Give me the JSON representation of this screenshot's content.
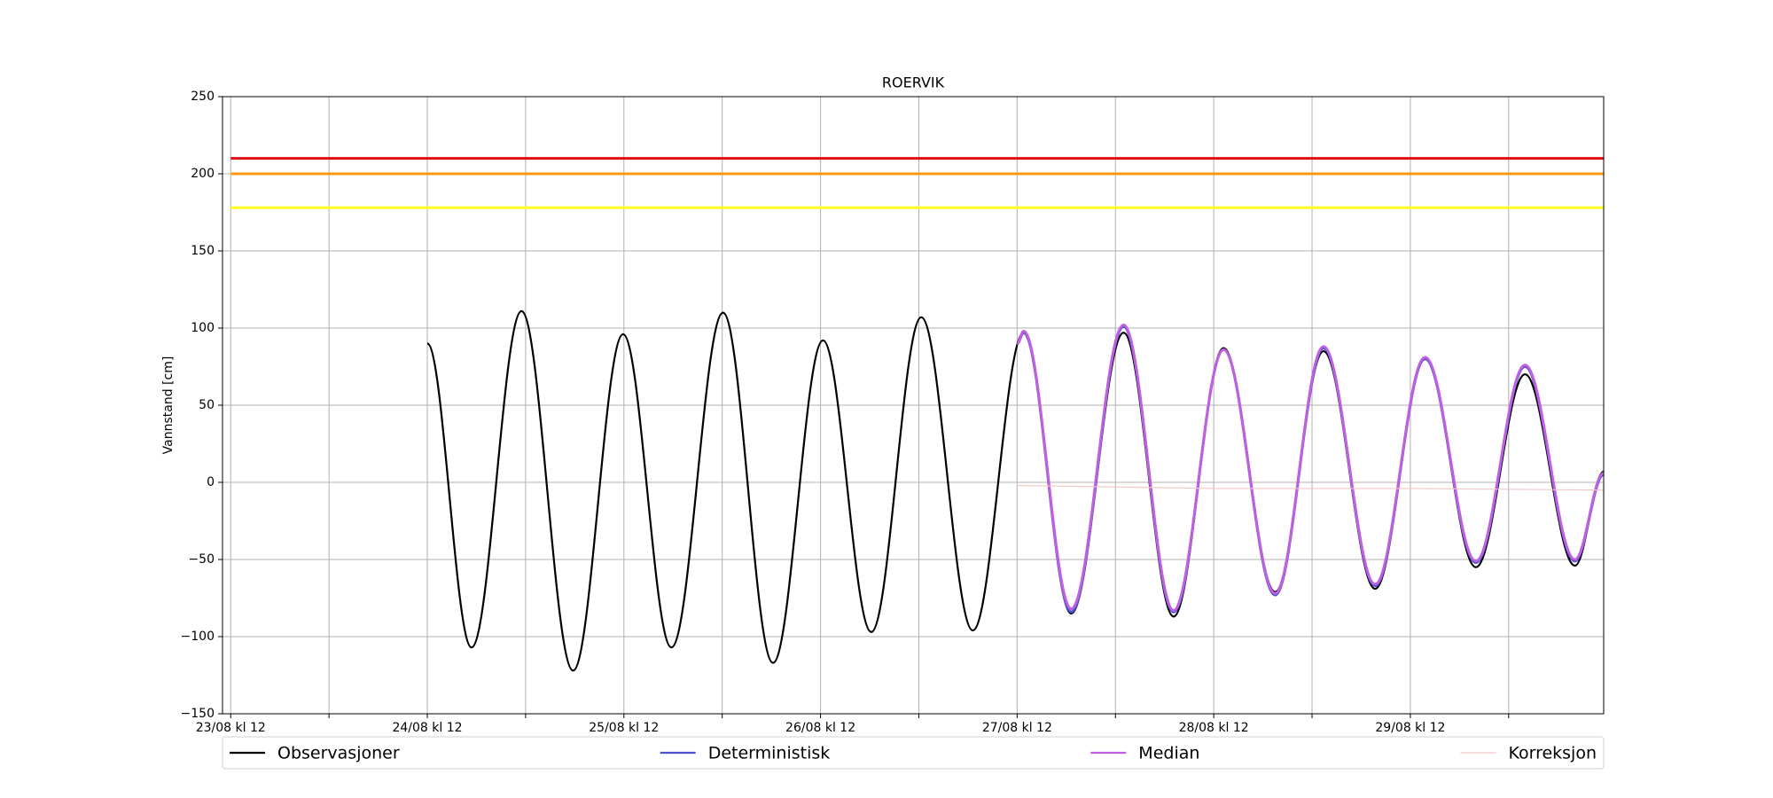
{
  "chart_data": {
    "type": "line",
    "title": "ROERVIK",
    "y_label": "Vannstand [cm]",
    "xlim": [
      -1,
      167.6
    ],
    "ylim": [
      -150,
      250
    ],
    "xticks": [
      {
        "value": 0,
        "label": "23/08 kl 12"
      },
      {
        "value": 12,
        "label": null
      },
      {
        "value": 24,
        "label": "24/08 kl 12"
      },
      {
        "value": 36,
        "label": null
      },
      {
        "value": 48,
        "label": "25/08 kl 12"
      },
      {
        "value": 60,
        "label": null
      },
      {
        "value": 72,
        "label": "26/08 kl 12"
      },
      {
        "value": 84,
        "label": null
      },
      {
        "value": 96,
        "label": "27/08 kl 12"
      },
      {
        "value": 108,
        "label": null
      },
      {
        "value": 120,
        "label": "28/08 kl 12"
      },
      {
        "value": 132,
        "label": null
      },
      {
        "value": 144,
        "label": "29/08 kl 12"
      },
      {
        "value": 156,
        "label": null
      }
    ],
    "yticks": [
      {
        "value": -150,
        "label": "−150"
      },
      {
        "value": -100,
        "label": "−100"
      },
      {
        "value": -50,
        "label": "−50"
      },
      0,
      50,
      100,
      150,
      200,
      250
    ],
    "grid": true,
    "legend": "bottom",
    "hlines": [
      {
        "value": 210,
        "color": "#e01010"
      },
      {
        "value": 200,
        "color": "#ff9a10"
      },
      {
        "value": 178,
        "color": "#ffff20"
      }
    ],
    "series": [
      {
        "name": "Observasjoner",
        "color": "#000000",
        "smooth": true,
        "x": [
          24,
          29.4,
          35.5,
          41.8,
          47.9,
          53.8,
          60.1,
          66.2,
          72.3,
          78.2,
          84.3,
          90.6,
          96.8,
          102.6,
          109.0,
          115.1,
          121.2,
          127.5,
          133.4,
          139.7,
          145.8,
          152.0,
          158.0,
          164.1,
          167.6
        ],
        "values": [
          90,
          -107,
          111,
          -122,
          96,
          -107,
          110,
          -117,
          92,
          -97,
          107,
          -96,
          97,
          -85,
          97,
          -87,
          87,
          -71,
          85,
          -69,
          80,
          -55,
          70,
          -54,
          7
        ]
      },
      {
        "name": "Deterministisk",
        "color": "#5050d0",
        "smooth": true,
        "x": [
          96,
          96.8,
          102.6,
          109.0,
          115.1,
          121.2,
          127.5,
          133.4,
          139.7,
          145.8,
          152.0,
          158.0,
          164.1,
          167.6
        ],
        "values": [
          90,
          97,
          -84,
          101,
          -84,
          86,
          -73,
          87,
          -67,
          80,
          -52,
          75,
          -51,
          5
        ]
      },
      {
        "name": "Median",
        "color": "#c060e0",
        "smooth": true,
        "x": [
          96,
          96.8,
          102.6,
          109.0,
          115.1,
          121.2,
          127.5,
          133.4,
          139.7,
          145.8,
          152.0,
          158.0,
          164.1,
          167.6
        ],
        "values": [
          90,
          98,
          -82,
          102,
          -83,
          86,
          -72,
          88,
          -66,
          81,
          -51,
          76,
          -50,
          6
        ]
      },
      {
        "name": "Korreksjon",
        "color": "#f0c8c8",
        "smooth": false,
        "x": [
          96,
          120,
          144,
          167.6
        ],
        "values": [
          -2,
          -4,
          -4,
          -5
        ]
      }
    ]
  }
}
